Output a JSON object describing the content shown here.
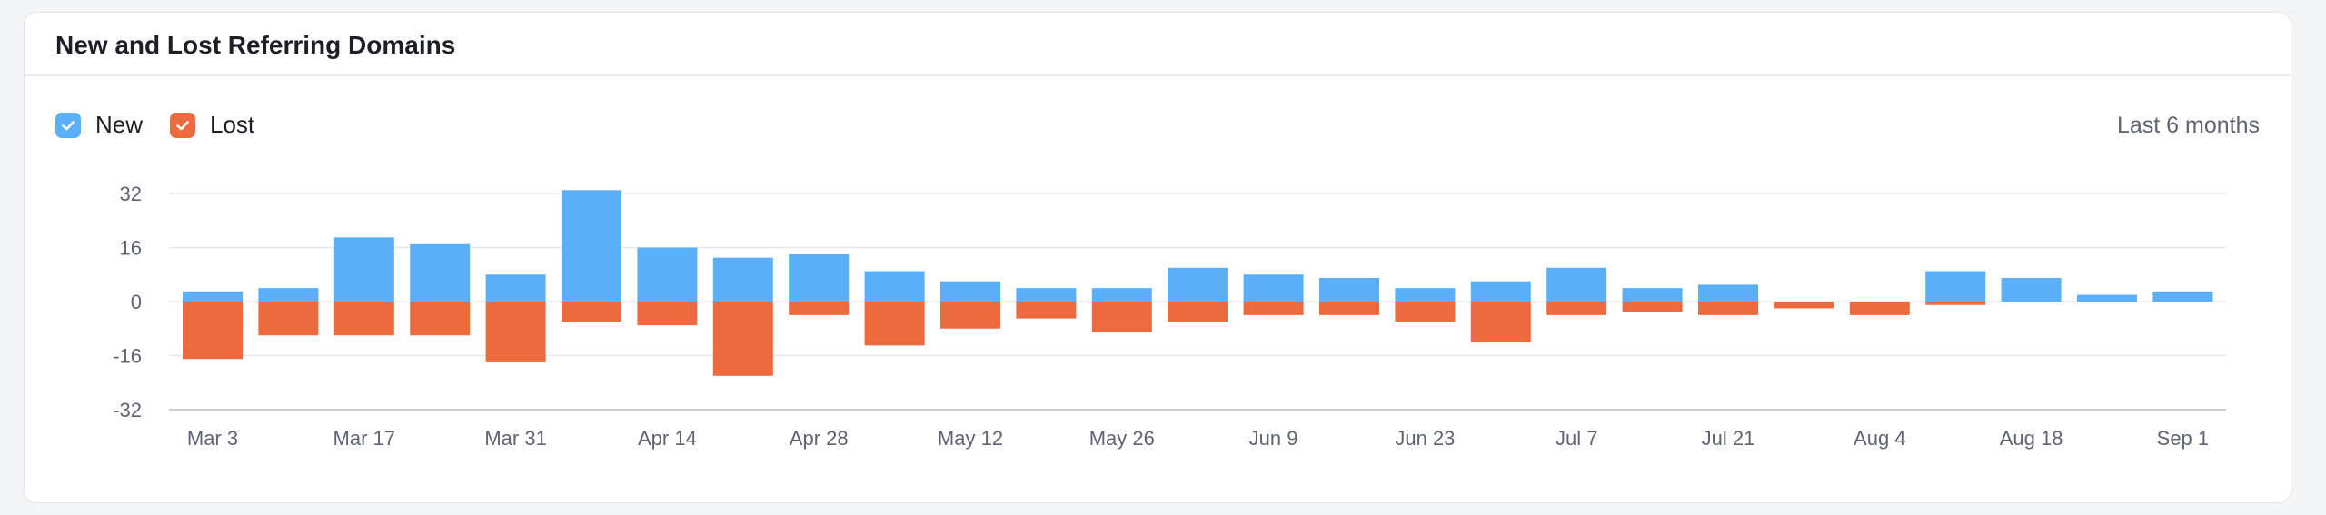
{
  "card": {
    "title": "New and Lost Referring Domains",
    "range_label": "Last 6 months"
  },
  "legend": [
    {
      "label": "New",
      "color": "#5aaff8",
      "checked": true,
      "icon": "check-icon"
    },
    {
      "label": "Lost",
      "color": "#ec6a3d",
      "checked": true,
      "icon": "check-icon"
    }
  ],
  "chart_data": {
    "type": "bar",
    "stacked": true,
    "grid": true,
    "legend_placement": "top-left",
    "ylim": [
      -32,
      32
    ],
    "yticks": [
      "32",
      "16",
      "0",
      "-16",
      "-32"
    ],
    "x_tick_labels": [
      "Mar 3",
      "Mar 17",
      "Mar 31",
      "Apr 14",
      "Apr 28",
      "May 12",
      "May 26",
      "Jun 9",
      "Jun 23",
      "Jul 7",
      "Jul 21",
      "Aug 4",
      "Aug 18",
      "Sep 1"
    ],
    "series": [
      {
        "name": "New",
        "color": "#5aaff8",
        "values": [
          3,
          4,
          19,
          17,
          8,
          33,
          16,
          13,
          14,
          9,
          6,
          4,
          4,
          10,
          8,
          7,
          4,
          6,
          10,
          4,
          5,
          0,
          0,
          9,
          7,
          2,
          3
        ]
      },
      {
        "name": "Lost",
        "color": "#ec6a3d",
        "values": [
          -17,
          -10,
          -10,
          -10,
          -18,
          -6,
          -7,
          -22,
          -4,
          -13,
          -8,
          -5,
          -9,
          -6,
          -4,
          -4,
          -6,
          -12,
          -4,
          -3,
          -4,
          -2,
          -4,
          -1,
          0,
          0,
          0
        ]
      }
    ]
  }
}
